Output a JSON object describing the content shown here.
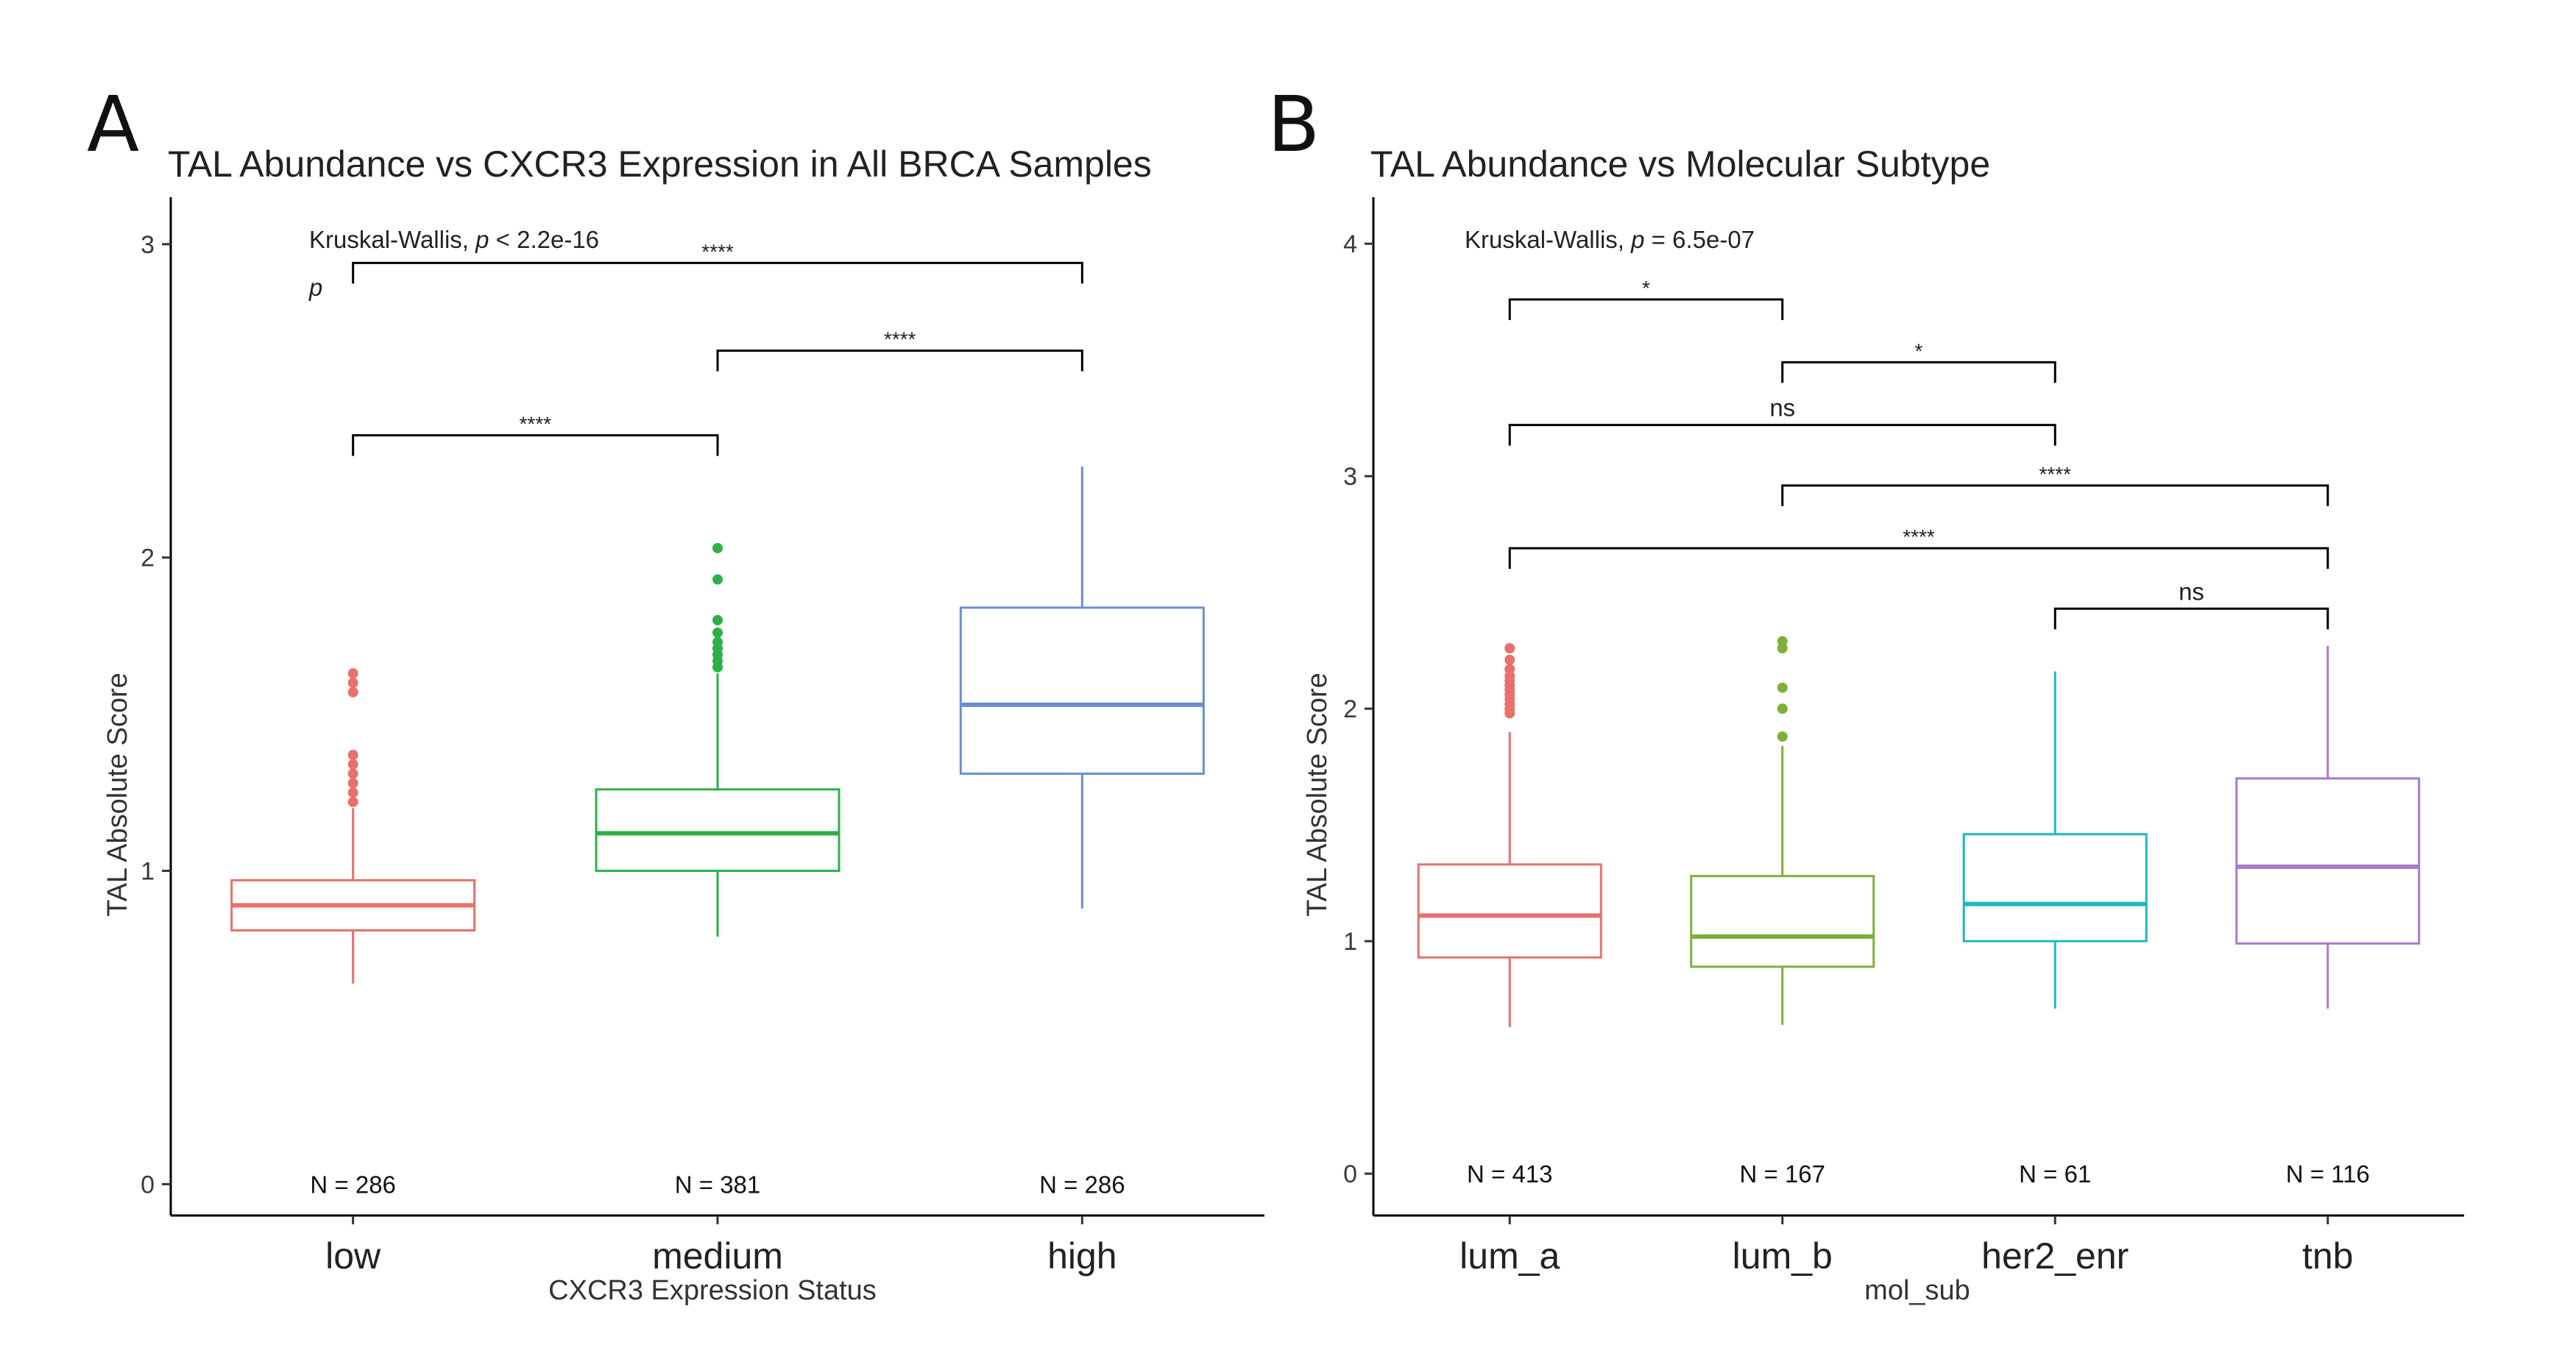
{
  "colors": {
    "low": "#E8716B",
    "medium": "#2DB04A",
    "high": "#6A8FD0",
    "lum_a": "#E8716B",
    "lum_b": "#7DAF3A",
    "her2_enr": "#1FB8C0",
    "tnb": "#A77BC9"
  },
  "chart_data": [
    {
      "type": "box",
      "panel_label": "A",
      "title": "TAL Abundance vs CXCR3 Expression in All BRCA Samples",
      "xlabel": "CXCR3 Expression Status",
      "ylabel": "TAL Absolute Score",
      "ylim": [
        -0.1,
        3.15
      ],
      "yticks": [
        "0",
        "1",
        "2",
        "3"
      ],
      "ytick_values": [
        0,
        1,
        2,
        3
      ],
      "categories": [
        "low",
        "medium",
        "high"
      ],
      "boxes": [
        {
          "name": "low",
          "q1": 0.81,
          "median": 0.89,
          "q3": 0.97,
          "whisker_low": 0.64,
          "whisker_high": 1.2,
          "outliers": [
            1.22,
            1.25,
            1.28,
            1.31,
            1.34,
            1.37,
            1.57,
            1.6,
            1.63
          ],
          "n_label": "N = 286"
        },
        {
          "name": "medium",
          "q1": 1.0,
          "median": 1.12,
          "q3": 1.26,
          "whisker_low": 0.79,
          "whisker_high": 1.63,
          "outliers": [
            1.65,
            1.67,
            1.69,
            1.71,
            1.73,
            1.76,
            1.8,
            1.93,
            2.03
          ],
          "n_label": "N = 381"
        },
        {
          "name": "high",
          "q1": 1.31,
          "median": 1.53,
          "q3": 1.84,
          "whisker_low": 0.88,
          "whisker_high": 2.29,
          "outliers": [],
          "n_label": "N = 286"
        }
      ],
      "global_test": {
        "label": "Kruskal-Wallis, ",
        "p_symbol": "p",
        "p_text": " < 2.2e-16",
        "extra_p_label": "p"
      },
      "comparisons": [
        {
          "from": 0,
          "to": 2,
          "y": 2.94,
          "label": "****"
        },
        {
          "from": 1,
          "to": 2,
          "y": 2.66,
          "label": "****"
        },
        {
          "from": 0,
          "to": 1,
          "y": 2.39,
          "label": "****"
        }
      ]
    },
    {
      "type": "box",
      "panel_label": "B",
      "title": "TAL Abundance vs Molecular Subtype",
      "xlabel": "mol_sub",
      "ylabel": "TAL Absolute Score",
      "ylim": [
        -0.18,
        4.2
      ],
      "yticks": [
        "0",
        "1",
        "2",
        "3",
        "4"
      ],
      "ytick_values": [
        0,
        1,
        2,
        3,
        4
      ],
      "categories": [
        "lum_a",
        "lum_b",
        "her2_enr",
        "tnb"
      ],
      "boxes": [
        {
          "name": "lum_a",
          "q1": 0.93,
          "median": 1.11,
          "q3": 1.33,
          "whisker_low": 0.63,
          "whisker_high": 1.9,
          "outliers": [
            1.98,
            2.0,
            2.02,
            2.04,
            2.06,
            2.08,
            2.1,
            2.12,
            2.14,
            2.17,
            2.21,
            2.26
          ],
          "n_label": "N = 413"
        },
        {
          "name": "lum_b",
          "q1": 0.89,
          "median": 1.02,
          "q3": 1.28,
          "whisker_low": 0.64,
          "whisker_high": 1.84,
          "outliers": [
            1.88,
            2.0,
            2.09,
            2.26,
            2.29
          ],
          "n_label": "N = 167"
        },
        {
          "name": "her2_enr",
          "q1": 1.0,
          "median": 1.16,
          "q3": 1.46,
          "whisker_low": 0.71,
          "whisker_high": 2.16,
          "outliers": [],
          "n_label": "N = 61"
        },
        {
          "name": "tnb",
          "q1": 0.99,
          "median": 1.32,
          "q3": 1.7,
          "whisker_low": 0.71,
          "whisker_high": 2.27,
          "outliers": [],
          "n_label": "N = 116"
        }
      ],
      "global_test": {
        "label": "Kruskal-Wallis, ",
        "p_symbol": "p",
        "p_text": " = 6.5e-07",
        "extra_p_label": ""
      },
      "comparisons": [
        {
          "from": 0,
          "to": 1,
          "y": 3.76,
          "label": "*"
        },
        {
          "from": 1,
          "to": 2,
          "y": 3.49,
          "label": "*"
        },
        {
          "from": 0,
          "to": 2,
          "y": 3.22,
          "label": "ns"
        },
        {
          "from": 1,
          "to": 3,
          "y": 2.96,
          "label": "****"
        },
        {
          "from": 0,
          "to": 3,
          "y": 2.69,
          "label": "****"
        },
        {
          "from": 2,
          "to": 3,
          "y": 2.43,
          "label": "ns"
        }
      ]
    }
  ]
}
